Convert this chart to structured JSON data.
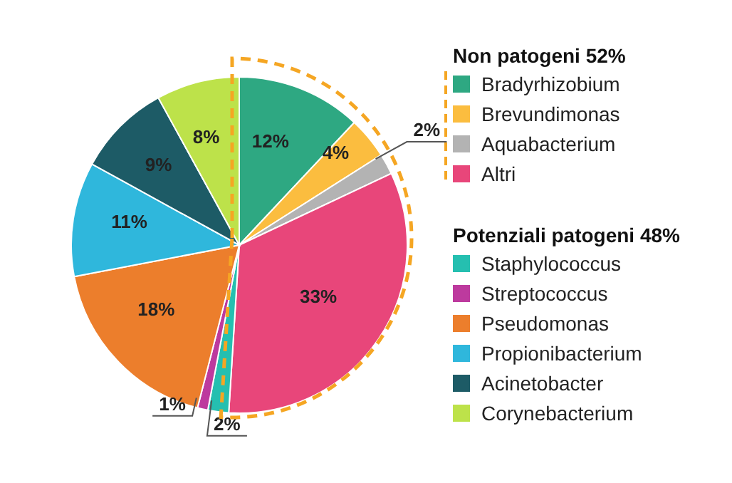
{
  "chart_data": {
    "type": "pie",
    "categories": [
      "Bradyrhizobium",
      "Brevundimonas",
      "Aquabacterium",
      "Altri",
      "Staphylococcus",
      "Streptococcus",
      "Pseudomonas",
      "Propionibacterium",
      "Acinetobacter",
      "Corynebacterium"
    ],
    "values": [
      12,
      4,
      2,
      33,
      2,
      1,
      18,
      11,
      9,
      8
    ],
    "colors": [
      "#2ea882",
      "#fbbd3f",
      "#b3b3b3",
      "#e8467a",
      "#25bfb0",
      "#bd3a9e",
      "#ec7e2c",
      "#2fb7dc",
      "#1d5b66",
      "#bde24a"
    ],
    "value_labels": [
      "12%",
      "4%",
      "2%",
      "33%",
      "2%",
      "1%",
      "18%",
      "11%",
      "9%",
      "8%"
    ],
    "annotations": [
      "Non patogeni 52%",
      "Potenziali patogeni 48%"
    ],
    "legend": "right"
  }
}
